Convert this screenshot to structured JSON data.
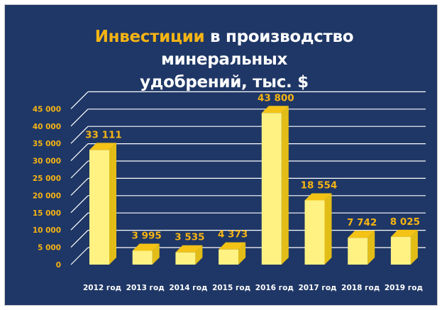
{
  "title": {
    "accent": "Инвестиции",
    "rest_line1": " в производство минеральных",
    "line2": "удобрений, тыс. $"
  },
  "colors": {
    "background": "#1f3766",
    "accent": "#f6b414",
    "bar_front": "#fff282",
    "bar_side": "#e3bd17",
    "bar_top": "#f4c316",
    "gridline": "#ffffff",
    "tick_text": "#f6b414",
    "category_text": "#ffffff"
  },
  "chart_data": {
    "type": "bar",
    "title": "Инвестиции в производство минеральных удобрений, тыс. $",
    "categories": [
      "2012 год",
      "2013 год",
      "2014 год",
      "2015 год",
      "2016 год",
      "2017 год",
      "2018 год",
      "2019 год"
    ],
    "values": [
      33111,
      3995,
      3535,
      4373,
      43800,
      18554,
      7742,
      8025
    ],
    "value_labels": [
      "33 111",
      "3 995",
      "3 535",
      "4 373",
      "43 800",
      "18 554",
      "7 742",
      "8 025"
    ],
    "y_ticks": [
      "0",
      "5 000",
      "10 000",
      "15 000",
      "20 000",
      "25 000",
      "30 000",
      "35 000",
      "40 000",
      "45 000"
    ],
    "ylim": [
      0,
      45000
    ],
    "grid": true,
    "style": "3d-bars"
  }
}
